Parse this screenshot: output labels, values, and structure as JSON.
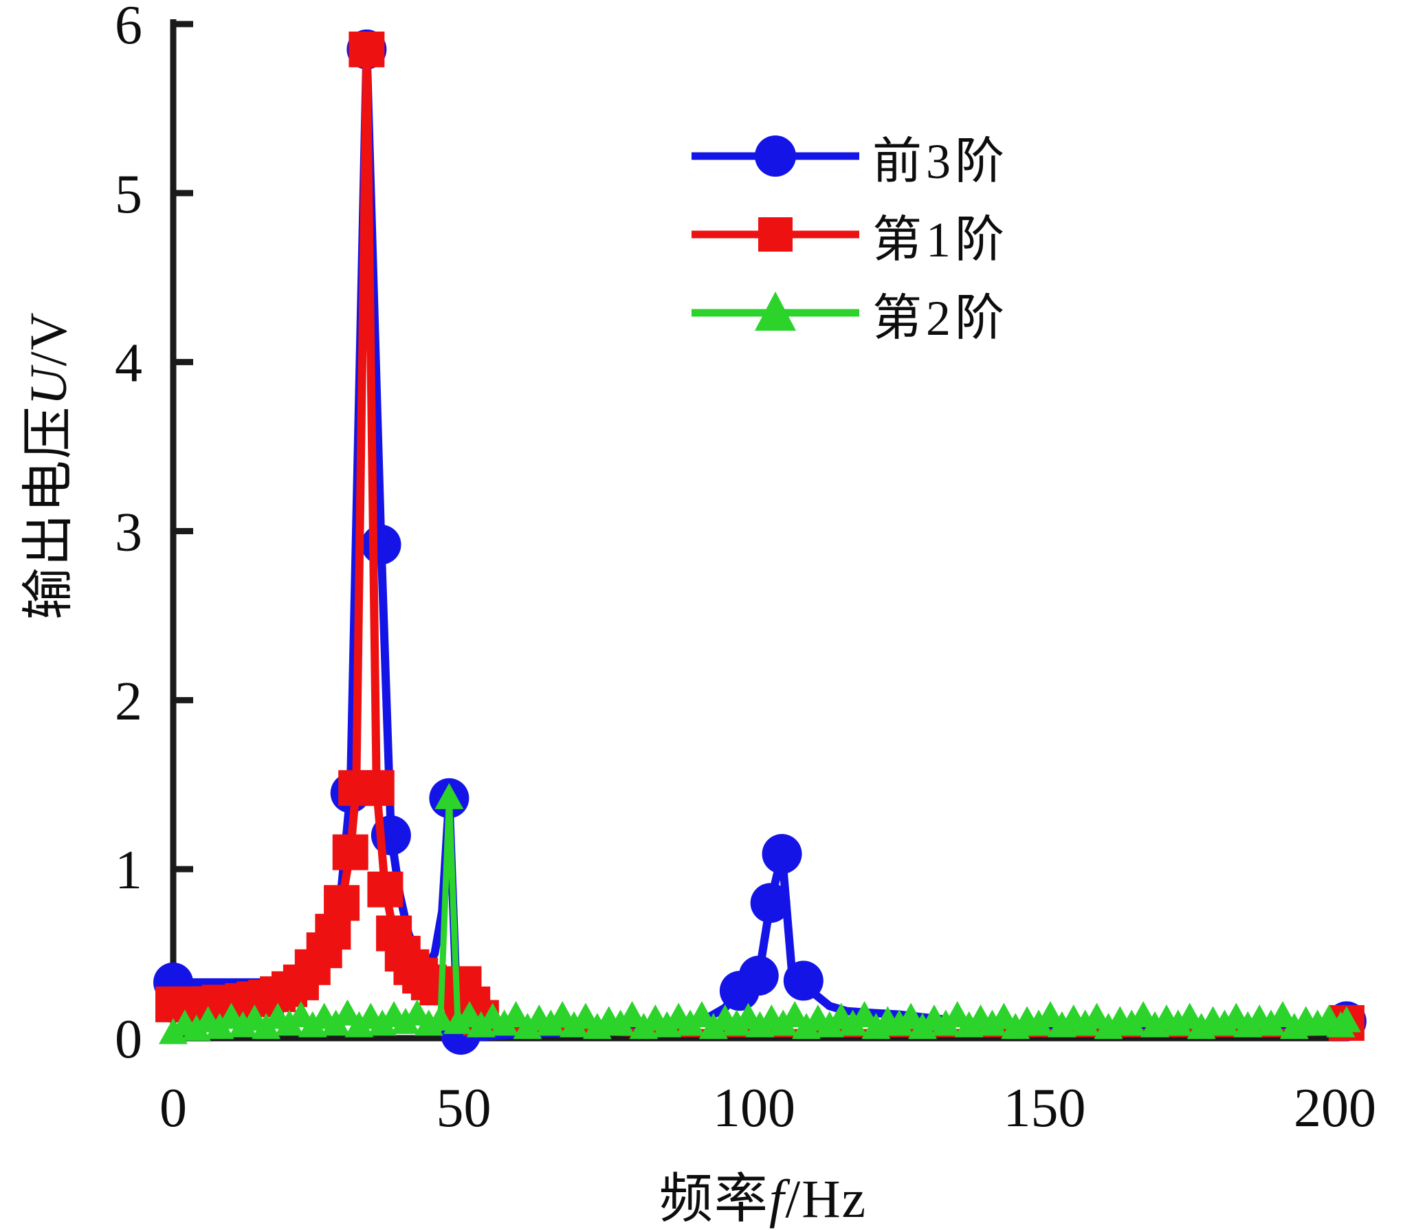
{
  "figure": {
    "background": "#ffffff",
    "text_color": "#0d0d0d"
  },
  "chart_data": {
    "type": "line",
    "title": "",
    "xlabel": {
      "text": "频率",
      "var": "f",
      "unit": "/Hz"
    },
    "ylabel": {
      "text": "输出电压",
      "var": "U",
      "unit": "/V"
    },
    "xlim": [
      0,
      202
    ],
    "ylim": [
      0,
      6
    ],
    "x_ticks": [
      0,
      50,
      100,
      150,
      200
    ],
    "y_ticks": [
      0,
      1,
      2,
      3,
      4,
      5,
      6
    ],
    "grid": false,
    "legend_position": "upper-right-inside",
    "axis_color": "#1a1a1a",
    "series": [
      {
        "name": "前3阶",
        "color": "#1414e6",
        "marker": "circle",
        "line_width": 12,
        "points": [
          [
            0,
            0.33
          ],
          [
            4,
            0.33
          ],
          [
            8,
            0.33
          ],
          [
            12,
            0.33
          ],
          [
            16,
            0.33
          ],
          [
            20,
            0.34
          ],
          [
            23,
            0.36
          ],
          [
            25.5,
            0.42
          ],
          [
            27.5,
            0.6
          ],
          [
            29,
            0.9
          ],
          [
            30.5,
            1.45
          ],
          [
            33.3,
            5.85
          ],
          [
            35.8,
            2.92
          ],
          [
            37.5,
            1.2
          ],
          [
            39,
            0.85
          ],
          [
            40.5,
            0.62
          ],
          [
            42,
            0.48
          ],
          [
            43.5,
            0.42
          ],
          [
            45,
            0.5
          ],
          [
            46.3,
            0.75
          ],
          [
            47.5,
            1.42
          ],
          [
            48.6,
            0.4
          ],
          [
            49.5,
            0.02
          ],
          [
            51,
            0
          ],
          [
            54,
            0.01
          ],
          [
            58,
            0.02
          ],
          [
            63,
            0.03
          ],
          [
            70,
            0.03
          ],
          [
            76,
            0.04
          ],
          [
            82,
            0.05
          ],
          [
            88,
            0.08
          ],
          [
            92,
            0.12
          ],
          [
            95,
            0.18
          ],
          [
            97.5,
            0.28
          ],
          [
            99.5,
            0.33
          ],
          [
            100.8,
            0.37
          ],
          [
            102.8,
            0.8
          ],
          [
            104.8,
            1.09
          ],
          [
            106.5,
            0.4
          ],
          [
            108.5,
            0.34
          ],
          [
            110.5,
            0.26
          ],
          [
            113,
            0.19
          ],
          [
            116,
            0.16
          ],
          [
            120,
            0.15
          ],
          [
            125,
            0.14
          ],
          [
            130,
            0.12
          ],
          [
            136,
            0.1
          ],
          [
            142,
            0.08
          ],
          [
            150,
            0.07
          ],
          [
            158,
            0.06
          ],
          [
            166,
            0.06
          ],
          [
            174,
            0.06
          ],
          [
            182,
            0.06
          ],
          [
            190,
            0.06
          ],
          [
            197,
            0.07
          ],
          [
            202,
            0.1
          ]
        ],
        "marker_points": [
          [
            0,
            0.33
          ],
          [
            30.5,
            1.45
          ],
          [
            33.3,
            5.85
          ],
          [
            35.8,
            2.92
          ],
          [
            37.5,
            1.2
          ],
          [
            47.5,
            1.42
          ],
          [
            49.5,
            0.02
          ],
          [
            97.5,
            0.28
          ],
          [
            100.8,
            0.37
          ],
          [
            102.8,
            0.8
          ],
          [
            104.8,
            1.09
          ],
          [
            108.5,
            0.34
          ],
          [
            202,
            0.1
          ]
        ]
      },
      {
        "name": "第1阶",
        "color": "#ee1111",
        "marker": "square",
        "line_width": 12,
        "points": [
          [
            0,
            0.2
          ],
          [
            2,
            0.2
          ],
          [
            4,
            0.2
          ],
          [
            6,
            0.2
          ],
          [
            8,
            0.21
          ],
          [
            10,
            0.21
          ],
          [
            12,
            0.22
          ],
          [
            14,
            0.23
          ],
          [
            16,
            0.24
          ],
          [
            18,
            0.26
          ],
          [
            20,
            0.29
          ],
          [
            22,
            0.33
          ],
          [
            24,
            0.42
          ],
          [
            26,
            0.52
          ],
          [
            27.5,
            0.63
          ],
          [
            29,
            0.8
          ],
          [
            30.5,
            1.1
          ],
          [
            31.5,
            1.48
          ],
          [
            33.3,
            5.85
          ],
          [
            35,
            1.48
          ],
          [
            36.5,
            0.88
          ],
          [
            38,
            0.62
          ],
          [
            39.5,
            0.5
          ],
          [
            41,
            0.42
          ],
          [
            42.5,
            0.37
          ],
          [
            44,
            0.33
          ],
          [
            45.5,
            0.3
          ],
          [
            47,
            0.22
          ],
          [
            47.7,
            0.12
          ],
          [
            48.5,
            0.3
          ],
          [
            50,
            0.32
          ],
          [
            51.5,
            0.2
          ],
          [
            53,
            0.12
          ],
          [
            55,
            0.07
          ],
          [
            58,
            0.05
          ],
          [
            62,
            0.04
          ],
          [
            68,
            0.04
          ],
          [
            75,
            0.04
          ],
          [
            82,
            0.03
          ],
          [
            90,
            0.03
          ],
          [
            100,
            0.03
          ],
          [
            110,
            0.03
          ],
          [
            120,
            0.03
          ],
          [
            130,
            0.03
          ],
          [
            140,
            0.03
          ],
          [
            150,
            0.03
          ],
          [
            160,
            0.03
          ],
          [
            170,
            0.03
          ],
          [
            180,
            0.03
          ],
          [
            190,
            0.03
          ],
          [
            198,
            0.04
          ],
          [
            202,
            0.09
          ]
        ],
        "marker_points": [
          [
            0,
            0.2
          ],
          [
            2,
            0.2
          ],
          [
            4,
            0.2
          ],
          [
            6,
            0.2
          ],
          [
            8,
            0.21
          ],
          [
            10,
            0.21
          ],
          [
            12,
            0.22
          ],
          [
            14,
            0.23
          ],
          [
            16,
            0.24
          ],
          [
            18,
            0.26
          ],
          [
            20,
            0.29
          ],
          [
            22,
            0.33
          ],
          [
            24,
            0.42
          ],
          [
            26,
            0.52
          ],
          [
            27.5,
            0.63
          ],
          [
            29,
            0.8
          ],
          [
            30.5,
            1.1
          ],
          [
            31.5,
            1.48
          ],
          [
            33.3,
            5.85
          ],
          [
            35,
            1.48
          ],
          [
            36.5,
            0.88
          ],
          [
            38,
            0.62
          ],
          [
            39.5,
            0.5
          ],
          [
            41,
            0.42
          ],
          [
            42.5,
            0.37
          ],
          [
            44,
            0.33
          ],
          [
            45.5,
            0.3
          ],
          [
            48.5,
            0.3
          ],
          [
            50,
            0.32
          ],
          [
            51.5,
            0.2
          ],
          [
            53,
            0.12
          ],
          [
            202,
            0.09
          ]
        ]
      },
      {
        "name": "第2阶",
        "color": "#2bd32b",
        "marker": "triangle",
        "line_width": 9,
        "points": [
          [
            0,
            0.03
          ],
          [
            2,
            0.08
          ],
          [
            4,
            0.05
          ],
          [
            6,
            0.1
          ],
          [
            8,
            0.06
          ],
          [
            10,
            0.12
          ],
          [
            12,
            0.07
          ],
          [
            14,
            0.11
          ],
          [
            16,
            0.06
          ],
          [
            18,
            0.12
          ],
          [
            20,
            0.08
          ],
          [
            22,
            0.13
          ],
          [
            24,
            0.07
          ],
          [
            26,
            0.12
          ],
          [
            28,
            0.08
          ],
          [
            30,
            0.14
          ],
          [
            32,
            0.07
          ],
          [
            34,
            0.12
          ],
          [
            36,
            0.08
          ],
          [
            38,
            0.13
          ],
          [
            40,
            0.09
          ],
          [
            42,
            0.14
          ],
          [
            44,
            0.08
          ],
          [
            46,
            0.11
          ],
          [
            47.5,
            1.42
          ],
          [
            49,
            0.09
          ],
          [
            51,
            0.13
          ],
          [
            53,
            0.07
          ],
          [
            55,
            0.12
          ],
          [
            57,
            0.08
          ],
          [
            59,
            0.13
          ],
          [
            61,
            0.06
          ],
          [
            63,
            0.11
          ],
          [
            65,
            0.08
          ],
          [
            67,
            0.13
          ],
          [
            69,
            0.07
          ],
          [
            71,
            0.12
          ],
          [
            73,
            0.06
          ],
          [
            75,
            0.1
          ],
          [
            77,
            0.08
          ],
          [
            79,
            0.13
          ],
          [
            81,
            0.06
          ],
          [
            83,
            0.11
          ],
          [
            85,
            0.07
          ],
          [
            87,
            0.12
          ],
          [
            89,
            0.08
          ],
          [
            91,
            0.13
          ],
          [
            93,
            0.06
          ],
          [
            95,
            0.11
          ],
          [
            97,
            0.08
          ],
          [
            99,
            0.12
          ],
          [
            101,
            0.07
          ],
          [
            103,
            0.11
          ],
          [
            105,
            0.08
          ],
          [
            107,
            0.13
          ],
          [
            109,
            0.06
          ],
          [
            111,
            0.11
          ],
          [
            113,
            0.07
          ],
          [
            115,
            0.12
          ],
          [
            117,
            0.08
          ],
          [
            119,
            0.13
          ],
          [
            121,
            0.06
          ],
          [
            123,
            0.1
          ],
          [
            125,
            0.08
          ],
          [
            127,
            0.12
          ],
          [
            129,
            0.06
          ],
          [
            131,
            0.11
          ],
          [
            133,
            0.08
          ],
          [
            135,
            0.13
          ],
          [
            137,
            0.07
          ],
          [
            139,
            0.11
          ],
          [
            141,
            0.08
          ],
          [
            143,
            0.12
          ],
          [
            145,
            0.06
          ],
          [
            147,
            0.1
          ],
          [
            149,
            0.08
          ],
          [
            151,
            0.13
          ],
          [
            153,
            0.07
          ],
          [
            155,
            0.11
          ],
          [
            157,
            0.08
          ],
          [
            159,
            0.12
          ],
          [
            161,
            0.06
          ],
          [
            163,
            0.1
          ],
          [
            165,
            0.08
          ],
          [
            167,
            0.13
          ],
          [
            169,
            0.07
          ],
          [
            171,
            0.11
          ],
          [
            173,
            0.08
          ],
          [
            175,
            0.12
          ],
          [
            177,
            0.06
          ],
          [
            179,
            0.1
          ],
          [
            181,
            0.08
          ],
          [
            183,
            0.12
          ],
          [
            185,
            0.07
          ],
          [
            187,
            0.11
          ],
          [
            189,
            0.08
          ],
          [
            191,
            0.13
          ],
          [
            193,
            0.06
          ],
          [
            195,
            0.1
          ],
          [
            197,
            0.08
          ],
          [
            199,
            0.11
          ],
          [
            201,
            0.07
          ],
          [
            202,
            0.1
          ]
        ]
      }
    ]
  }
}
